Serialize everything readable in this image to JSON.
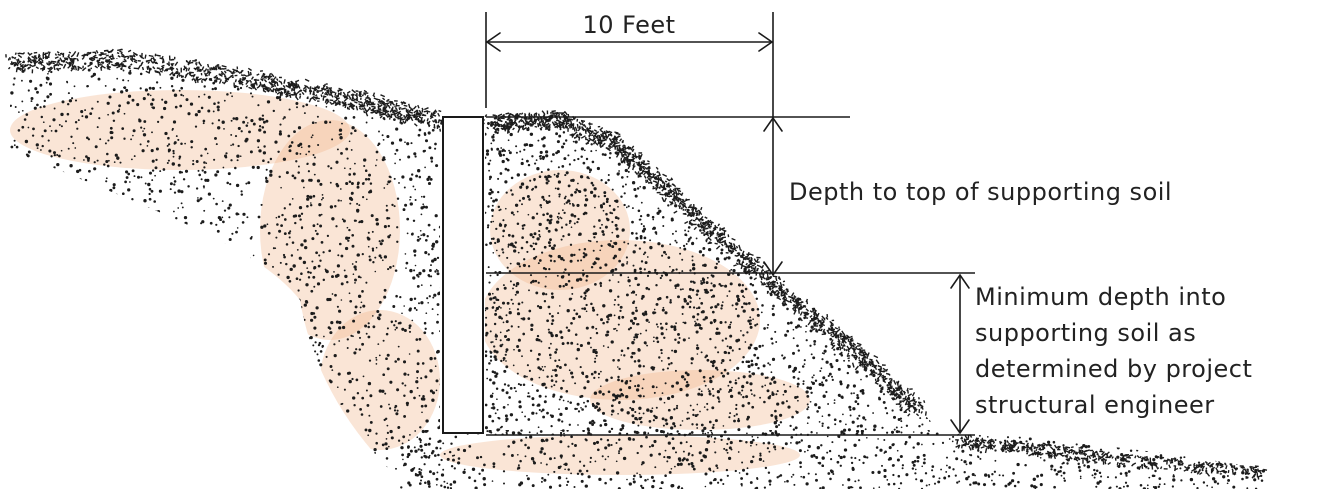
{
  "labels": {
    "width_dimension": "10 Feet",
    "depth_to_top": "Depth to top of supporting soil",
    "min_depth_lines": [
      "Minimum depth into",
      "supporting soil as",
      "determined by project",
      "structural engineer"
    ]
  },
  "colors": {
    "soil_dots": "#1c1c1c",
    "soil_tint": "#f2b48a",
    "lines": "#1a1a1a",
    "text": "#222222"
  }
}
